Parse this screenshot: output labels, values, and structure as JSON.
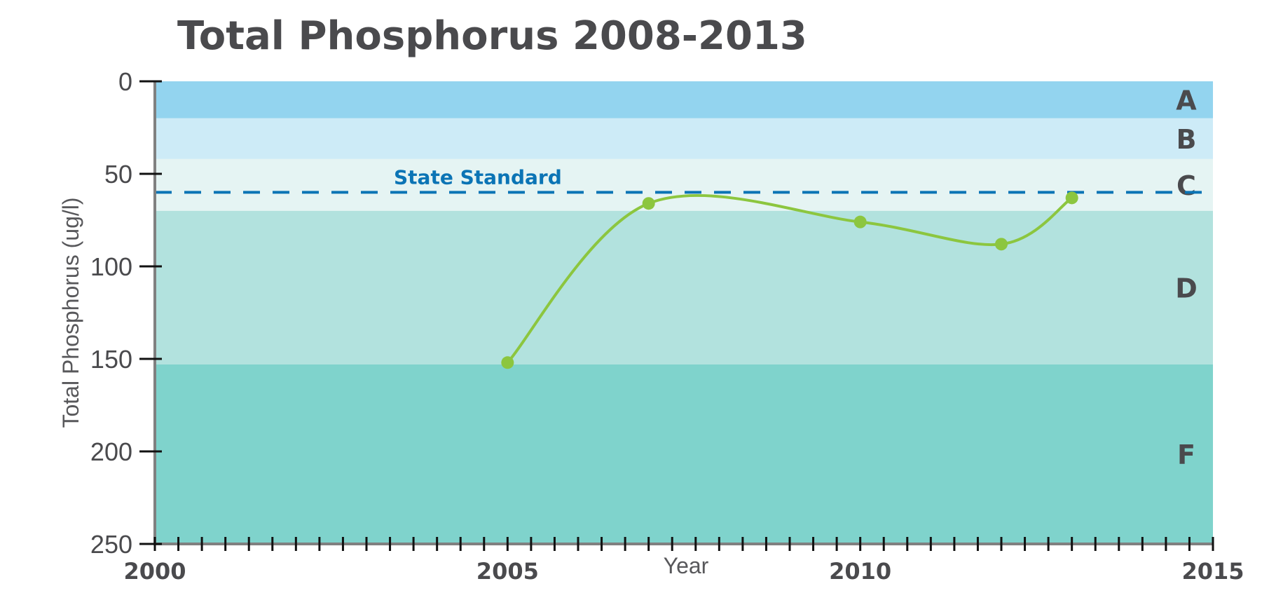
{
  "chart_data": {
    "type": "line",
    "title": "Total Phosphorus 2008-2013",
    "xlabel": "Year",
    "ylabel": "Total Phosphorus (ug/l)",
    "xlim": [
      2000,
      2015
    ],
    "ylim": [
      0,
      250
    ],
    "y_inverted": true,
    "x_ticks": [
      "2000",
      "2005",
      "2010",
      "2015"
    ],
    "x_tick_values": [
      2000,
      2005,
      2010,
      2015
    ],
    "y_ticks": [
      "0",
      "50",
      "100",
      "150",
      "200",
      "250"
    ],
    "y_tick_values": [
      0,
      50,
      100,
      150,
      200,
      250
    ],
    "minor_x_tick_step": 0.3333,
    "series": [
      {
        "name": "Total Phosphorus",
        "color": "#8cc63f",
        "x": [
          2005,
          2007,
          2010,
          2012,
          2013
        ],
        "y": [
          152,
          66,
          76,
          88,
          63
        ]
      }
    ],
    "bands": [
      {
        "label": "A",
        "from": 0,
        "to": 20,
        "color": "#93d4ef"
      },
      {
        "label": "B",
        "from": 20,
        "to": 42,
        "color": "#cdebf7"
      },
      {
        "label": "C",
        "from": 42,
        "to": 70,
        "color": "#e5f4f3"
      },
      {
        "label": "D",
        "from": 70,
        "to": 153,
        "color": "#b2e2de"
      },
      {
        "label": "F",
        "from": 153,
        "to": 250,
        "color": "#7fd3cc"
      }
    ],
    "reference_line": {
      "label": "State Standard",
      "value": 60,
      "color": "#0b74b5"
    }
  }
}
